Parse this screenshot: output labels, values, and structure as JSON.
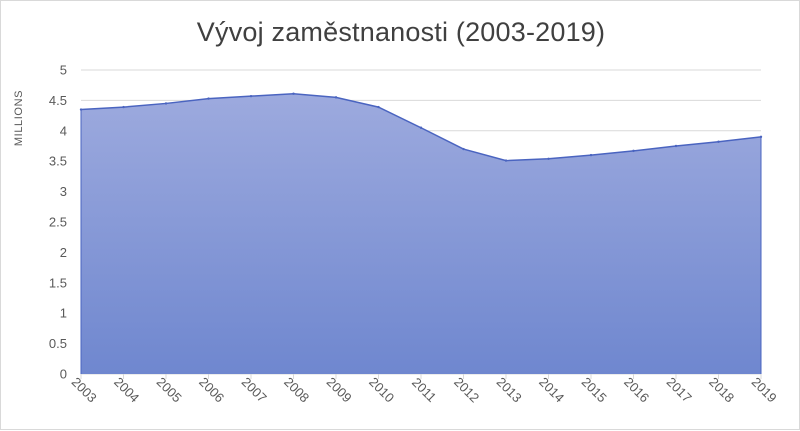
{
  "chart_data": {
    "type": "area",
    "title": "Vývoj zaměstnanosti  (2003-2019)",
    "ylabel": "MILLIONS",
    "xlabel": "",
    "categories": [
      "2003",
      "2004",
      "2005",
      "2006",
      "2007",
      "2008",
      "2009",
      "2010",
      "2011",
      "2012",
      "2013",
      "2014",
      "2015",
      "2016",
      "2017",
      "2018",
      "2019"
    ],
    "values": [
      4.35,
      4.39,
      4.45,
      4.53,
      4.57,
      4.61,
      4.55,
      4.39,
      4.05,
      3.7,
      3.51,
      3.54,
      3.6,
      3.67,
      3.75,
      3.82,
      3.9
    ],
    "ylim": [
      0,
      5
    ],
    "yticks": [
      "0",
      "0.5",
      "1",
      "1.5",
      "2",
      "2.5",
      "3",
      "3.5",
      "4",
      "4.5",
      "5"
    ],
    "grid": true,
    "legend": "none",
    "colors": {
      "fill_top": "#9daade",
      "fill_bottom": "#6f87cf",
      "line": "#4a64c0",
      "grid": "#d9d9d9",
      "text": "#595959"
    }
  }
}
